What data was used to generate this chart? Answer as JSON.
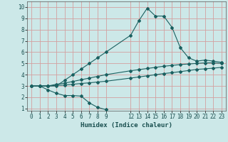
{
  "xlabel": "Humidex (Indice chaleur)",
  "bg_color": "#cce8e8",
  "grid_color": "#d4a0a0",
  "line_color": "#1a6060",
  "xlim": [
    -0.5,
    23.5
  ],
  "ylim": [
    0.8,
    10.5
  ],
  "xticks": [
    0,
    1,
    2,
    3,
    4,
    5,
    6,
    7,
    8,
    9,
    12,
    13,
    14,
    15,
    16,
    17,
    18,
    19,
    20,
    21,
    22,
    23
  ],
  "yticks": [
    1,
    2,
    3,
    4,
    5,
    6,
    7,
    8,
    9,
    10
  ],
  "line1_x": [
    0,
    1,
    2,
    3,
    4,
    5,
    6,
    7,
    8,
    9,
    12,
    13,
    14,
    15,
    16,
    17,
    18,
    19,
    20,
    21,
    22,
    23
  ],
  "line1_y": [
    3.0,
    3.0,
    3.0,
    3.0,
    3.5,
    4.0,
    4.5,
    5.0,
    5.5,
    6.0,
    7.5,
    8.8,
    9.9,
    9.2,
    9.2,
    8.2,
    6.4,
    5.5,
    5.2,
    5.3,
    5.2,
    5.1
  ],
  "line2_x": [
    0,
    1,
    2,
    3,
    4,
    5,
    6,
    7,
    8,
    9,
    12,
    13,
    14,
    15,
    16,
    17,
    18,
    19,
    20,
    21,
    22,
    23
  ],
  "line2_y": [
    3.0,
    3.0,
    3.0,
    3.15,
    3.25,
    3.4,
    3.55,
    3.7,
    3.85,
    4.0,
    4.35,
    4.45,
    4.55,
    4.65,
    4.75,
    4.82,
    4.9,
    4.95,
    5.0,
    5.05,
    5.05,
    5.0
  ],
  "line3_x": [
    0,
    1,
    2,
    3,
    4,
    5,
    6,
    7,
    8,
    9,
    12,
    13,
    14,
    15,
    16,
    17,
    18,
    19,
    20,
    21,
    22,
    23
  ],
  "line3_y": [
    3.0,
    3.0,
    3.0,
    3.05,
    3.08,
    3.15,
    3.22,
    3.28,
    3.35,
    3.42,
    3.7,
    3.8,
    3.9,
    4.0,
    4.1,
    4.18,
    4.27,
    4.37,
    4.47,
    4.52,
    4.58,
    4.65
  ],
  "line4_x": [
    1,
    2,
    3,
    4,
    5,
    6,
    7,
    8,
    9
  ],
  "line4_y": [
    3.0,
    2.65,
    2.35,
    2.15,
    2.15,
    2.1,
    1.5,
    1.1,
    0.9
  ],
  "marker": "D",
  "markersize": 2.0,
  "linewidth": 0.8
}
